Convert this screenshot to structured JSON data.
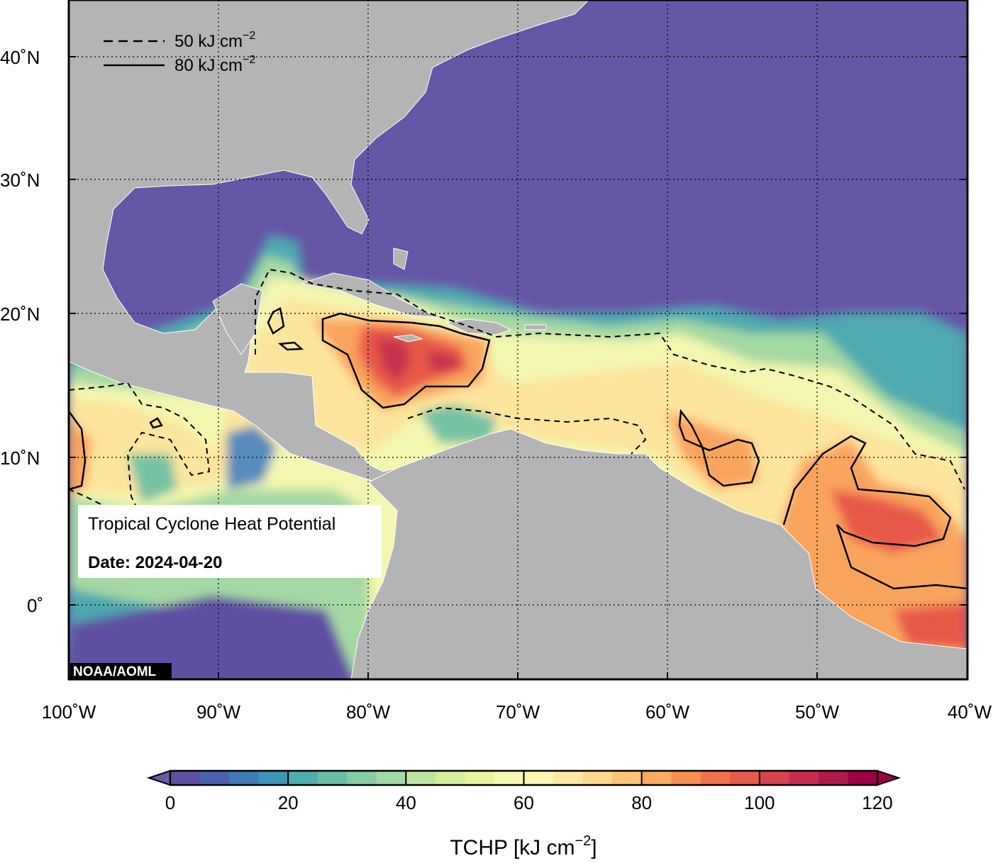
{
  "info_box": {
    "title": "Tropical Cyclone Heat Potential",
    "date": "Date: 2024-04-20"
  },
  "credit": "NOAA/AOML",
  "legend": {
    "dashed_label": "50 kJ cm",
    "solid_label": "80 kJ cm",
    "exponent": "−2"
  },
  "axes": {
    "lon_ticks": [
      "100˚W",
      "90˚W",
      "80˚W",
      "70˚W",
      "60˚W",
      "50˚W",
      "40˚W"
    ],
    "lat_ticks": [
      "40˚N",
      "30˚N",
      "20˚N",
      "10˚N",
      "0˚"
    ],
    "lon_range": [
      -100,
      -40
    ],
    "lat_range": [
      -5,
      44
    ]
  },
  "colorbar": {
    "title": "TCHP [kJ cm",
    "title_exponent": "−2",
    "title_close": "]",
    "tick_labels": [
      "0",
      "20",
      "40",
      "60",
      "80",
      "100",
      "120"
    ],
    "range": [
      0,
      120
    ],
    "step": 5,
    "colors": [
      "#5f4fa2",
      "#4a62ad",
      "#3f7bb7",
      "#3d95b7",
      "#4fadac",
      "#67bea4",
      "#84cca3",
      "#a2d9a4",
      "#bde5a0",
      "#d5ee9b",
      "#e8f59b",
      "#f5fab0",
      "#fdf5b2",
      "#fee9a0",
      "#fed98b",
      "#fdc475",
      "#fcaa61",
      "#f98e52",
      "#f27248",
      "#e85a49",
      "#d9434e",
      "#c82d4f",
      "#b21a4b",
      "#9e0142"
    ],
    "under_color": "#6a5aa8",
    "over_color": "#9e0142"
  },
  "map": {
    "land_color": "#b4b4b4",
    "cold_ocean_color": "#6656a6"
  }
}
